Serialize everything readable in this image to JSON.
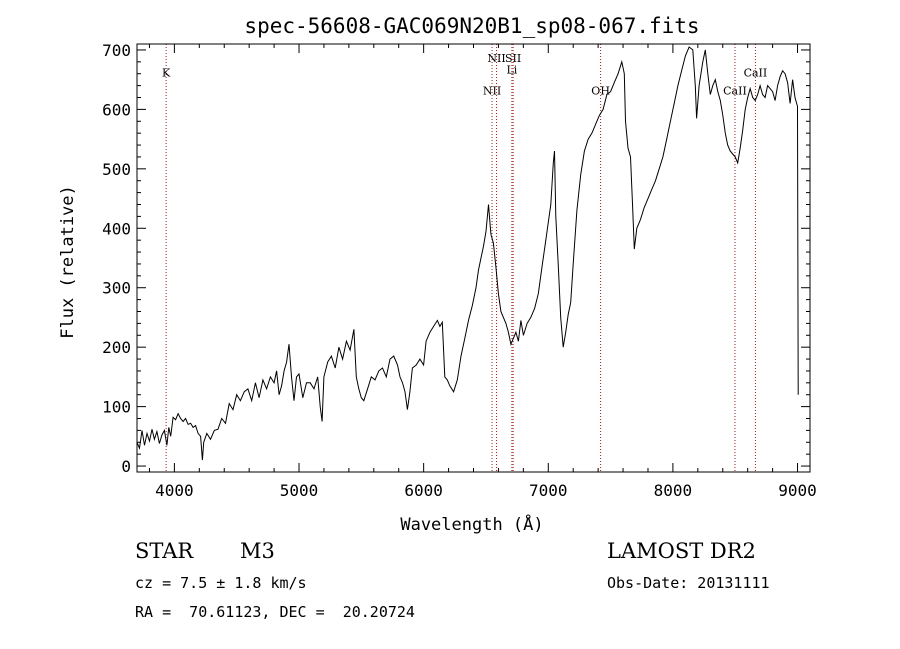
{
  "chart_data": {
    "type": "line",
    "title": "spec-56608-GAC069N20B1_sp08-067.fits",
    "xlabel": "Wavelength (Å)",
    "ylabel": "Flux (relative)",
    "xlim": [
      3700,
      9100
    ],
    "ylim": [
      -10,
      710
    ],
    "xticks": [
      4000,
      5000,
      6000,
      7000,
      8000,
      9000
    ],
    "yticks": [
      0,
      100,
      200,
      300,
      400,
      500,
      600,
      700
    ],
    "grid": false,
    "colors": {
      "spectrum": "#000000",
      "lines": "#a01818"
    },
    "series": [
      {
        "name": "spectrum",
        "points": [
          [
            3700,
            40
          ],
          [
            3720,
            30
          ],
          [
            3740,
            60
          ],
          [
            3760,
            35
          ],
          [
            3780,
            55
          ],
          [
            3800,
            42
          ],
          [
            3820,
            62
          ],
          [
            3840,
            45
          ],
          [
            3860,
            58
          ],
          [
            3880,
            38
          ],
          [
            3900,
            52
          ],
          [
            3920,
            60
          ],
          [
            3940,
            35
          ],
          [
            3955,
            65
          ],
          [
            3970,
            50
          ],
          [
            3990,
            82
          ],
          [
            4010,
            78
          ],
          [
            4030,
            88
          ],
          [
            4050,
            80
          ],
          [
            4070,
            75
          ],
          [
            4090,
            80
          ],
          [
            4110,
            70
          ],
          [
            4130,
            72
          ],
          [
            4150,
            65
          ],
          [
            4170,
            68
          ],
          [
            4190,
            55
          ],
          [
            4210,
            50
          ],
          [
            4225,
            10
          ],
          [
            4235,
            40
          ],
          [
            4260,
            55
          ],
          [
            4290,
            45
          ],
          [
            4320,
            60
          ],
          [
            4350,
            62
          ],
          [
            4380,
            80
          ],
          [
            4410,
            72
          ],
          [
            4440,
            105
          ],
          [
            4470,
            95
          ],
          [
            4500,
            120
          ],
          [
            4530,
            110
          ],
          [
            4560,
            125
          ],
          [
            4590,
            130
          ],
          [
            4620,
            110
          ],
          [
            4650,
            140
          ],
          [
            4680,
            115
          ],
          [
            4710,
            145
          ],
          [
            4740,
            130
          ],
          [
            4770,
            150
          ],
          [
            4800,
            140
          ],
          [
            4820,
            160
          ],
          [
            4840,
            120
          ],
          [
            4860,
            135
          ],
          [
            4880,
            160
          ],
          [
            4900,
            175
          ],
          [
            4920,
            205
          ],
          [
            4940,
            150
          ],
          [
            4960,
            110
          ],
          [
            4980,
            150
          ],
          [
            5000,
            155
          ],
          [
            5030,
            115
          ],
          [
            5060,
            140
          ],
          [
            5090,
            140
          ],
          [
            5120,
            130
          ],
          [
            5150,
            150
          ],
          [
            5170,
            100
          ],
          [
            5185,
            75
          ],
          [
            5200,
            150
          ],
          [
            5230,
            175
          ],
          [
            5260,
            185
          ],
          [
            5290,
            165
          ],
          [
            5320,
            200
          ],
          [
            5350,
            180
          ],
          [
            5380,
            210
          ],
          [
            5410,
            195
          ],
          [
            5440,
            230
          ],
          [
            5460,
            150
          ],
          [
            5480,
            130
          ],
          [
            5500,
            115
          ],
          [
            5520,
            110
          ],
          [
            5550,
            130
          ],
          [
            5580,
            150
          ],
          [
            5610,
            145
          ],
          [
            5640,
            160
          ],
          [
            5670,
            165
          ],
          [
            5700,
            150
          ],
          [
            5730,
            180
          ],
          [
            5760,
            185
          ],
          [
            5790,
            170
          ],
          [
            5810,
            150
          ],
          [
            5830,
            140
          ],
          [
            5850,
            125
          ],
          [
            5870,
            95
          ],
          [
            5890,
            125
          ],
          [
            5910,
            165
          ],
          [
            5940,
            170
          ],
          [
            5970,
            180
          ],
          [
            6000,
            170
          ],
          [
            6020,
            210
          ],
          [
            6050,
            225
          ],
          [
            6080,
            235
          ],
          [
            6110,
            245
          ],
          [
            6130,
            235
          ],
          [
            6150,
            242
          ],
          [
            6170,
            150
          ],
          [
            6190,
            145
          ],
          [
            6210,
            135
          ],
          [
            6240,
            125
          ],
          [
            6270,
            145
          ],
          [
            6300,
            185
          ],
          [
            6330,
            215
          ],
          [
            6360,
            245
          ],
          [
            6390,
            270
          ],
          [
            6420,
            300
          ],
          [
            6440,
            330
          ],
          [
            6460,
            350
          ],
          [
            6480,
            370
          ],
          [
            6500,
            395
          ],
          [
            6520,
            440
          ],
          [
            6540,
            390
          ],
          [
            6560,
            375
          ],
          [
            6580,
            335
          ],
          [
            6600,
            290
          ],
          [
            6620,
            260
          ],
          [
            6640,
            250
          ],
          [
            6660,
            240
          ],
          [
            6680,
            225
          ],
          [
            6700,
            205
          ],
          [
            6720,
            215
          ],
          [
            6740,
            225
          ],
          [
            6760,
            210
          ],
          [
            6780,
            245
          ],
          [
            6800,
            220
          ],
          [
            6830,
            240
          ],
          [
            6860,
            250
          ],
          [
            6890,
            265
          ],
          [
            6920,
            290
          ],
          [
            6950,
            335
          ],
          [
            6980,
            380
          ],
          [
            7000,
            410
          ],
          [
            7020,
            440
          ],
          [
            7040,
            510
          ],
          [
            7050,
            530
          ],
          [
            7060,
            420
          ],
          [
            7080,
            340
          ],
          [
            7100,
            250
          ],
          [
            7120,
            200
          ],
          [
            7140,
            225
          ],
          [
            7160,
            255
          ],
          [
            7180,
            275
          ],
          [
            7200,
            340
          ],
          [
            7230,
            430
          ],
          [
            7260,
            490
          ],
          [
            7290,
            530
          ],
          [
            7320,
            550
          ],
          [
            7350,
            560
          ],
          [
            7380,
            575
          ],
          [
            7410,
            590
          ],
          [
            7440,
            600
          ],
          [
            7470,
            625
          ],
          [
            7500,
            630
          ],
          [
            7530,
            645
          ],
          [
            7560,
            660
          ],
          [
            7590,
            680
          ],
          [
            7610,
            660
          ],
          [
            7620,
            580
          ],
          [
            7640,
            535
          ],
          [
            7660,
            520
          ],
          [
            7675,
            445
          ],
          [
            7690,
            365
          ],
          [
            7710,
            400
          ],
          [
            7740,
            415
          ],
          [
            7770,
            435
          ],
          [
            7800,
            450
          ],
          [
            7830,
            465
          ],
          [
            7860,
            480
          ],
          [
            7890,
            500
          ],
          [
            7920,
            520
          ],
          [
            7950,
            550
          ],
          [
            7980,
            580
          ],
          [
            8010,
            610
          ],
          [
            8040,
            640
          ],
          [
            8070,
            665
          ],
          [
            8100,
            690
          ],
          [
            8130,
            705
          ],
          [
            8160,
            700
          ],
          [
            8180,
            640
          ],
          [
            8190,
            585
          ],
          [
            8210,
            640
          ],
          [
            8240,
            680
          ],
          [
            8260,
            700
          ],
          [
            8280,
            660
          ],
          [
            8300,
            625
          ],
          [
            8320,
            640
          ],
          [
            8340,
            650
          ],
          [
            8360,
            630
          ],
          [
            8380,
            615
          ],
          [
            8400,
            590
          ],
          [
            8420,
            560
          ],
          [
            8440,
            540
          ],
          [
            8460,
            530
          ],
          [
            8480,
            525
          ],
          [
            8500,
            520
          ],
          [
            8520,
            510
          ],
          [
            8540,
            535
          ],
          [
            8560,
            565
          ],
          [
            8580,
            600
          ],
          [
            8600,
            620
          ],
          [
            8620,
            635
          ],
          [
            8640,
            620
          ],
          [
            8660,
            615
          ],
          [
            8680,
            625
          ],
          [
            8700,
            640
          ],
          [
            8720,
            625
          ],
          [
            8740,
            620
          ],
          [
            8760,
            640
          ],
          [
            8780,
            635
          ],
          [
            8800,
            630
          ],
          [
            8820,
            615
          ],
          [
            8840,
            640
          ],
          [
            8860,
            655
          ],
          [
            8880,
            665
          ],
          [
            8900,
            660
          ],
          [
            8920,
            645
          ],
          [
            8940,
            610
          ],
          [
            8960,
            650
          ],
          [
            8980,
            620
          ],
          [
            9000,
            605
          ],
          [
            9005,
            120
          ]
        ]
      }
    ],
    "line_markers": [
      {
        "label": "K",
        "x": 3934,
        "label_y": 655
      },
      {
        "label": "NII",
        "x": 6549,
        "label_y": 625
      },
      {
        "label": "NII",
        "x": 6585,
        "label_y": 680
      },
      {
        "label": "SII",
        "x": 6718,
        "label_y": 680
      },
      {
        "label": "Li",
        "x": 6708,
        "label_y": 660
      },
      {
        "label": "OH",
        "x": 7420,
        "label_y": 625
      },
      {
        "label": "CaII",
        "x": 8498,
        "label_y": 625
      },
      {
        "label": "CaII",
        "x": 8662,
        "label_y": 655
      }
    ]
  },
  "info": {
    "class": "STAR",
    "subclass": "M3",
    "survey": "LAMOST DR2",
    "redshift": "cz = 7.5 ± 1.8 km/s",
    "obs_date": "Obs-Date: 20131111",
    "coords": "RA =  70.61123, DEC =  20.20724"
  }
}
